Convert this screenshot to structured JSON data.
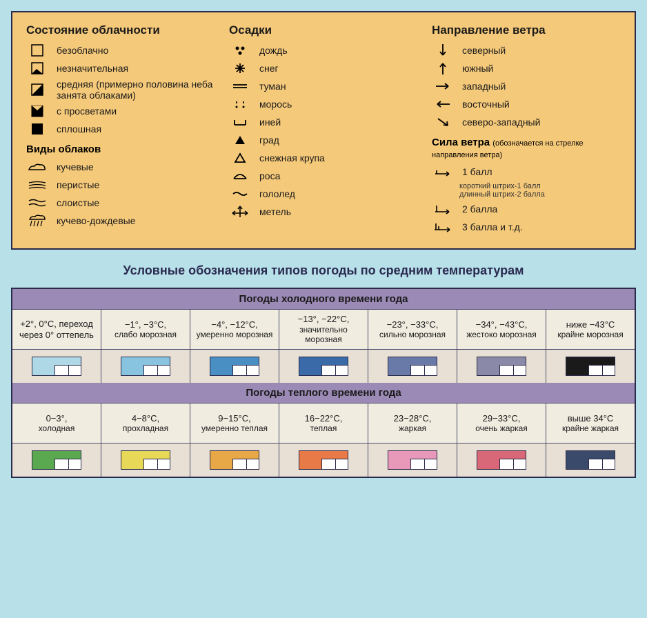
{
  "legend_panel": {
    "background": "#f5c97a",
    "border": "#2a2a4a",
    "cloudiness": {
      "title": "Состояние облачности",
      "items": [
        {
          "icon": "box-empty",
          "label": "безоблачно"
        },
        {
          "icon": "box-corner",
          "label": "незначительная"
        },
        {
          "icon": "box-diag",
          "label": "средняя (примерно половина неба занята облаками)"
        },
        {
          "icon": "box-tri",
          "label": "с просветами"
        },
        {
          "icon": "box-full",
          "label": "сплошная"
        }
      ]
    },
    "cloud_types": {
      "title": "Виды облаков",
      "items": [
        {
          "icon": "cloud-cumulus",
          "label": "кучевые"
        },
        {
          "icon": "cloud-cirrus",
          "label": "перистые"
        },
        {
          "icon": "cloud-stratus",
          "label": "слоистые"
        },
        {
          "icon": "cloud-rain",
          "label": "кучево-дождевые"
        }
      ]
    },
    "precipitation": {
      "title": "Осадки",
      "items": [
        {
          "icon": "dots-rain",
          "label": "дождь"
        },
        {
          "icon": "snowflake",
          "label": "снег"
        },
        {
          "icon": "fog-lines",
          "label": "туман"
        },
        {
          "icon": "drizzle",
          "label": "морось"
        },
        {
          "icon": "frost",
          "label": "иней"
        },
        {
          "icon": "hail-tri",
          "label": "град"
        },
        {
          "icon": "snow-tri",
          "label": "снежная крупа"
        },
        {
          "icon": "dew",
          "label": "роса"
        },
        {
          "icon": "ice",
          "label": "гололед"
        },
        {
          "icon": "blizzard",
          "label": "метель"
        }
      ]
    },
    "wind_direction": {
      "title": "Направление ветра",
      "items": [
        {
          "icon": "arrow-n",
          "label": "северный"
        },
        {
          "icon": "arrow-s",
          "label": "южный"
        },
        {
          "icon": "arrow-w",
          "label": "западный"
        },
        {
          "icon": "arrow-e",
          "label": "восточный"
        },
        {
          "icon": "arrow-nw",
          "label": "северо-западный"
        }
      ]
    },
    "wind_force": {
      "title": "Сила ветра",
      "note": "(обозначается на стрелке направления ветра)",
      "items": [
        {
          "icon": "force-1",
          "label": "1 балл"
        },
        {
          "icon": "force-2",
          "label": "2 балла"
        },
        {
          "icon": "force-3",
          "label": "3 балла и т.д."
        }
      ],
      "subnote1": "короткий штрих-1 балл",
      "subnote2": "длинный штрих-2 балла"
    }
  },
  "temp_caption": "Условные обозначения типов погоды по средним температурам",
  "temp_table": {
    "cold_title": "Погоды холодного времени года",
    "warm_title": "Погоды теплого времени года",
    "cold": [
      {
        "temp": "+2°, 0°C, переход через 0° оттепель",
        "label": "",
        "color": "#aed8e6"
      },
      {
        "temp": "−1°, −3°C,",
        "label": "слабо морозная",
        "color": "#88c4e0"
      },
      {
        "temp": "−4°, −12°C,",
        "label": "умеренно морозная",
        "color": "#4a8fc4"
      },
      {
        "temp": "−13°, −22°C,",
        "label": "значительно морозная",
        "color": "#3a6aa8"
      },
      {
        "temp": "−23°, −33°C,",
        "label": "сильно морозная",
        "color": "#6a7aa8"
      },
      {
        "temp": "−34°, −43°C,",
        "label": "жестоко морозная",
        "color": "#8a8aa8"
      },
      {
        "temp": "ниже −43°C",
        "label": "крайне морозная",
        "color": "#1a1a1a"
      }
    ],
    "warm": [
      {
        "temp": "0−3°,",
        "label": "холодная",
        "color": "#5aa850"
      },
      {
        "temp": "4−8°C,",
        "label": "прохладная",
        "color": "#e8d858"
      },
      {
        "temp": "9−15°C,",
        "label": "умеренно теплая",
        "color": "#e8a848"
      },
      {
        "temp": "16−22°C,",
        "label": "теплая",
        "color": "#e87a48"
      },
      {
        "temp": "23−28°C,",
        "label": "жаркая",
        "color": "#e898b8"
      },
      {
        "temp": "29−33°C,",
        "label": "очень жаркая",
        "color": "#d86878"
      },
      {
        "temp": "выше 34°C",
        "label": "крайне жаркая",
        "color": "#3a4a6a"
      }
    ]
  }
}
